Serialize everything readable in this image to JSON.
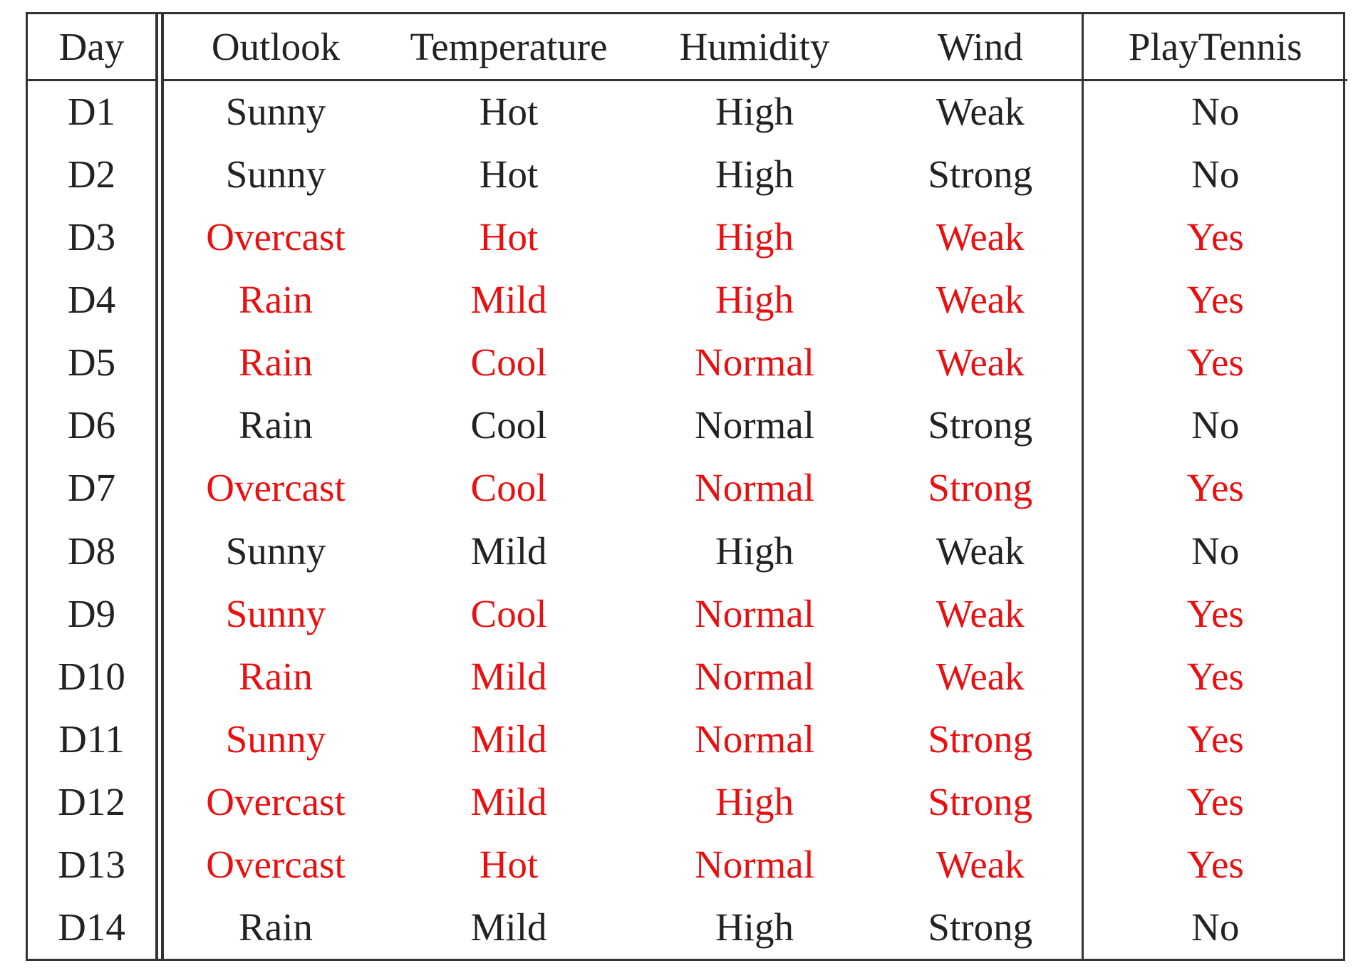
{
  "table": {
    "headers": [
      "Day",
      "Outlook",
      "Temperature",
      "Humidity",
      "Wind",
      "PlayTennis"
    ],
    "rows": [
      {
        "day": "D1",
        "outlook": "Sunny",
        "temperature": "Hot",
        "humidity": "High",
        "wind": "Weak",
        "play": "No",
        "highlight": false
      },
      {
        "day": "D2",
        "outlook": "Sunny",
        "temperature": "Hot",
        "humidity": "High",
        "wind": "Strong",
        "play": "No",
        "highlight": false
      },
      {
        "day": "D3",
        "outlook": "Overcast",
        "temperature": "Hot",
        "humidity": "High",
        "wind": "Weak",
        "play": "Yes",
        "highlight": true
      },
      {
        "day": "D4",
        "outlook": "Rain",
        "temperature": "Mild",
        "humidity": "High",
        "wind": "Weak",
        "play": "Yes",
        "highlight": true
      },
      {
        "day": "D5",
        "outlook": "Rain",
        "temperature": "Cool",
        "humidity": "Normal",
        "wind": "Weak",
        "play": "Yes",
        "highlight": true
      },
      {
        "day": "D6",
        "outlook": "Rain",
        "temperature": "Cool",
        "humidity": "Normal",
        "wind": "Strong",
        "play": "No",
        "highlight": false
      },
      {
        "day": "D7",
        "outlook": "Overcast",
        "temperature": "Cool",
        "humidity": "Normal",
        "wind": "Strong",
        "play": "Yes",
        "highlight": true
      },
      {
        "day": "D8",
        "outlook": "Sunny",
        "temperature": "Mild",
        "humidity": "High",
        "wind": "Weak",
        "play": "No",
        "highlight": false
      },
      {
        "day": "D9",
        "outlook": "Sunny",
        "temperature": "Cool",
        "humidity": "Normal",
        "wind": "Weak",
        "play": "Yes",
        "highlight": true
      },
      {
        "day": "D10",
        "outlook": "Rain",
        "temperature": "Mild",
        "humidity": "Normal",
        "wind": "Weak",
        "play": "Yes",
        "highlight": true
      },
      {
        "day": "D11",
        "outlook": "Sunny",
        "temperature": "Mild",
        "humidity": "Normal",
        "wind": "Strong",
        "play": "Yes",
        "highlight": true
      },
      {
        "day": "D12",
        "outlook": "Overcast",
        "temperature": "Mild",
        "humidity": "High",
        "wind": "Strong",
        "play": "Yes",
        "highlight": true
      },
      {
        "day": "D13",
        "outlook": "Overcast",
        "temperature": "Hot",
        "humidity": "Normal",
        "wind": "Weak",
        "play": "Yes",
        "highlight": true
      },
      {
        "day": "D14",
        "outlook": "Rain",
        "temperature": "Mild",
        "humidity": "High",
        "wind": "Strong",
        "play": "No",
        "highlight": false
      }
    ]
  },
  "colors": {
    "highlight": "#e81010",
    "text": "#222222",
    "rule": "#333333"
  }
}
